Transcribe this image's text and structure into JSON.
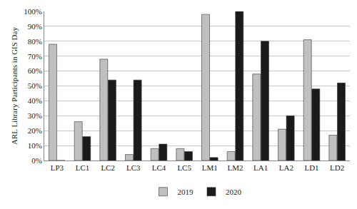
{
  "chart_data": {
    "type": "bar",
    "y_label": "ARL Library Participants in GIS Day",
    "categories": [
      "LP3",
      "LC1",
      "LC2",
      "LC3",
      "LC4",
      "LC5",
      "LM1",
      "LM2",
      "LA1",
      "LA2",
      "LD1",
      "LD2"
    ],
    "series": [
      {
        "name": "2019",
        "color": "#c0c0c0",
        "values": [
          78,
          26,
          68,
          4,
          8,
          8,
          98,
          6,
          58,
          21,
          81,
          17
        ]
      },
      {
        "name": "2020",
        "color": "#1a1a1a",
        "values": [
          0,
          16,
          54,
          54,
          11,
          6,
          2,
          100,
          80,
          30,
          48,
          52
        ]
      }
    ],
    "ylim": [
      0,
      100
    ],
    "yticks": [
      {
        "value": 0,
        "label": "0%"
      },
      {
        "value": 10,
        "label": "10%"
      },
      {
        "value": 20,
        "label": "20%"
      },
      {
        "value": 30,
        "label": "30%"
      },
      {
        "value": 40,
        "label": "40%"
      },
      {
        "value": 50,
        "label": "50%"
      },
      {
        "value": 60,
        "label": "60%"
      },
      {
        "value": 70,
        "label": "70%"
      },
      {
        "value": 80,
        "label": "80%"
      },
      {
        "value": 90,
        "label": "90%"
      },
      {
        "value": 100,
        "label": "100%"
      }
    ],
    "grid": true,
    "legend": "bottom"
  }
}
